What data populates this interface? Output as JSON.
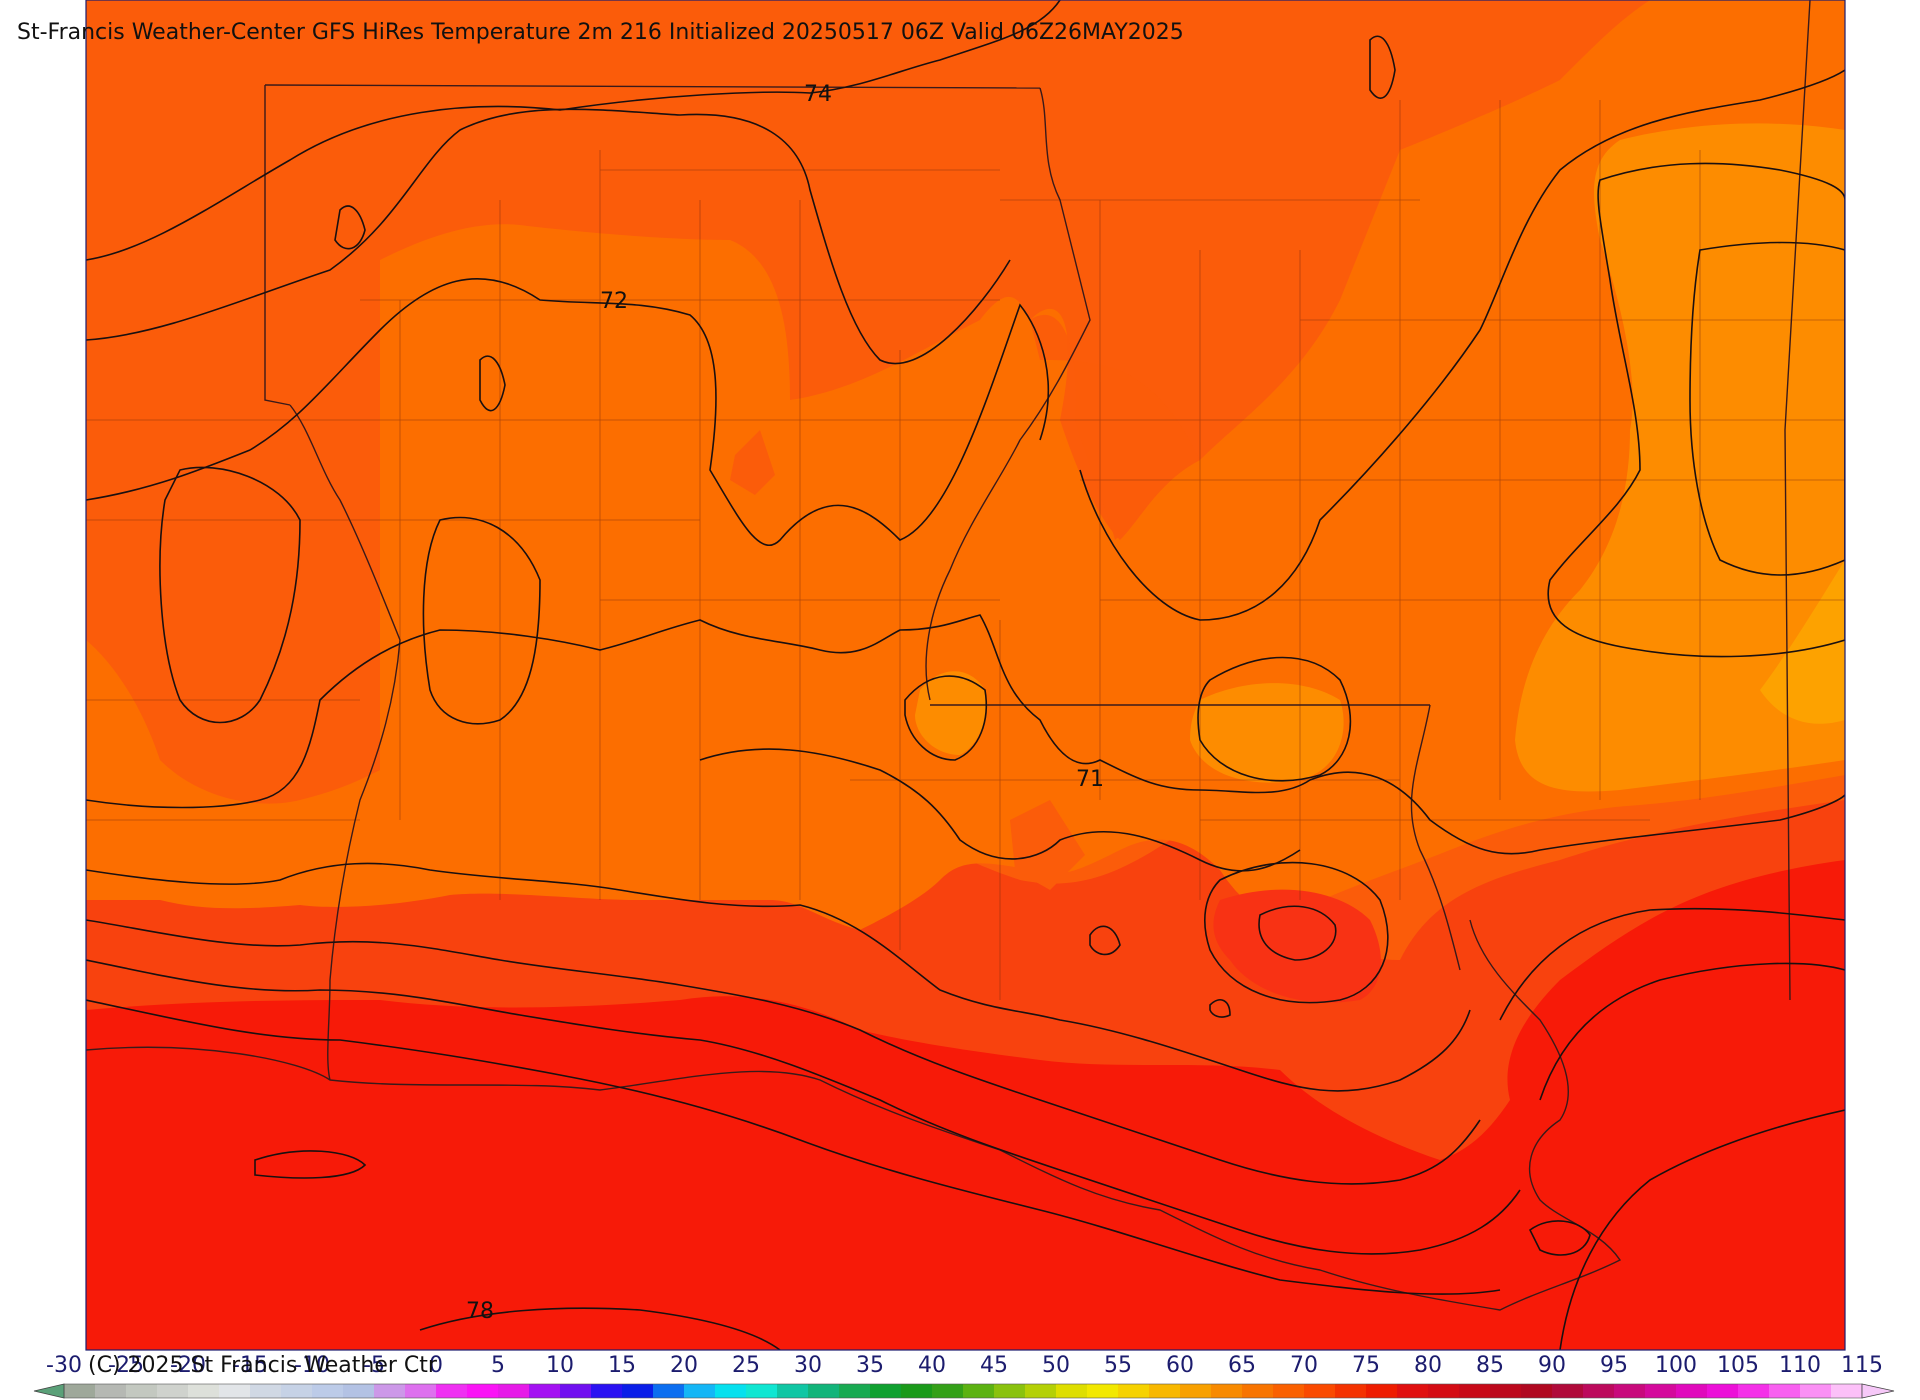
{
  "title": "St-Francis Weather-Center GFS HiRes Temperature 2m  216 Initialized 20250517 06Z Valid 06Z26MAY2025",
  "copyright": "(C) 2025 St Francis Weather Ctr",
  "contour_labels": [
    "74",
    "72",
    "71",
    "78"
  ],
  "colorbar": {
    "ticks": [
      "-30",
      "-25",
      "-20",
      "-15",
      "-10",
      "-5",
      "0",
      "5",
      "10",
      "15",
      "20",
      "25",
      "30",
      "35",
      "40",
      "45",
      "50",
      "55",
      "60",
      "65",
      "70",
      "75",
      "80",
      "85",
      "90",
      "95",
      "100",
      "105",
      "110",
      "115"
    ],
    "colors": [
      "#9ea89a",
      "#b5b8b3",
      "#c3c8c0",
      "#cfd2cd",
      "#dde0da",
      "#e2e5e8",
      "#d0d8e4",
      "#c6d2e6",
      "#bccbe8",
      "#b3c2e4",
      "#cc98e8",
      "#dd70ee",
      "#ef30f2",
      "#fa14f6",
      "#e61ae8",
      "#a412f2",
      "#7010f0",
      "#2a12f2",
      "#0a1ee8",
      "#0c6ef0",
      "#14b6f6",
      "#06e0ee",
      "#10e6d2",
      "#10c6a4",
      "#12b47a",
      "#18aa52",
      "#10a030",
      "#1a9a1a",
      "#34a018",
      "#5cb212",
      "#8ac20e",
      "#b4d006",
      "#dede00",
      "#f2e800",
      "#f6d200",
      "#f8b800",
      "#f8a000",
      "#f88a00",
      "#f87400",
      "#fa6000",
      "#fa4a00",
      "#f43200",
      "#ee1c00",
      "#e01010",
      "#d40c14",
      "#c80a18",
      "#bc081c",
      "#b00820",
      "#b00a3a",
      "#bc0a5c",
      "#c80a7c",
      "#d40a9c",
      "#e00abc",
      "#ec10d8",
      "#f430e8",
      "#f860f0",
      "#fa90f4",
      "#fcc0f8"
    ]
  }
}
